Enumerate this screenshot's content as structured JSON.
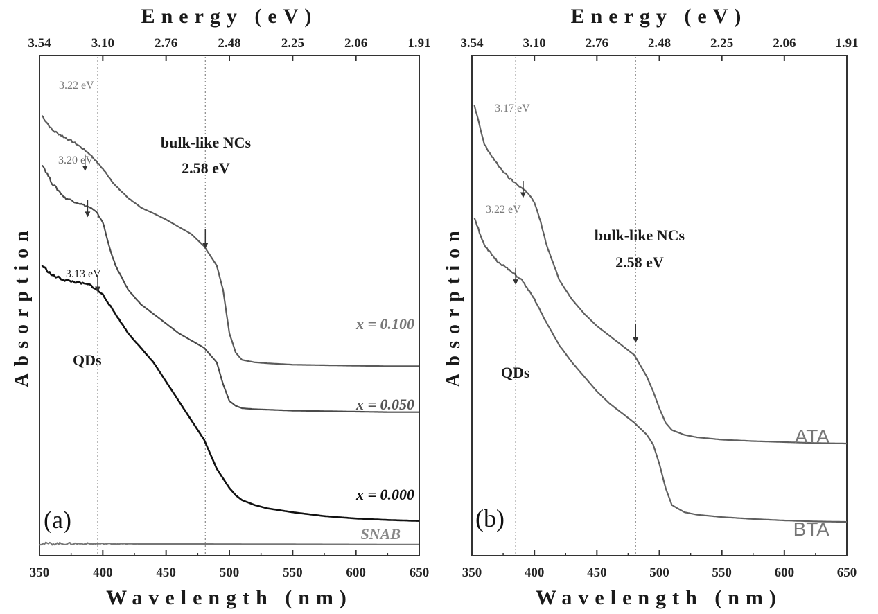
{
  "chart_data": [
    {
      "panel": "(a)",
      "type": "line",
      "xlabel": "Wavelength (nm)",
      "ylabel": "Absorption",
      "x2label": "Energy (eV)",
      "xlim": [
        350,
        650
      ],
      "xticks": [
        350,
        400,
        450,
        500,
        550,
        600,
        650
      ],
      "x2ticks": [
        "3.54",
        "3.10",
        "2.76",
        "2.48",
        "2.25",
        "2.06",
        "1.91"
      ],
      "grid": false,
      "series": [
        {
          "name": "x = 0.100",
          "color": "#5a5a5a",
          "x": [
            352,
            360,
            370,
            380,
            390,
            400,
            410,
            420,
            430,
            440,
            450,
            460,
            470,
            480,
            490,
            495,
            500,
            505,
            510,
            520,
            530,
            550,
            575,
            600,
            625,
            650
          ],
          "y": [
            0.89,
            0.86,
            0.845,
            0.83,
            0.81,
            0.78,
            0.745,
            0.72,
            0.7,
            0.688,
            0.675,
            0.66,
            0.645,
            0.62,
            0.58,
            0.53,
            0.44,
            0.4,
            0.385,
            0.38,
            0.378,
            0.375,
            0.374,
            0.373,
            0.372,
            0.372
          ]
        },
        {
          "name": "x = 0.050",
          "color": "#4a4a4a",
          "x": [
            352,
            360,
            370,
            380,
            390,
            395,
            400,
            405,
            410,
            420,
            430,
            440,
            450,
            460,
            470,
            480,
            490,
            495,
            500,
            505,
            510,
            520,
            530,
            550,
            575,
            600,
            625,
            650
          ],
          "y": [
            0.79,
            0.75,
            0.72,
            0.71,
            0.7,
            0.69,
            0.67,
            0.62,
            0.58,
            0.53,
            0.5,
            0.48,
            0.46,
            0.44,
            0.425,
            0.41,
            0.38,
            0.335,
            0.3,
            0.29,
            0.285,
            0.283,
            0.282,
            0.28,
            0.279,
            0.278,
            0.277,
            0.277
          ]
        },
        {
          "name": "x = 0.000",
          "color": "#111111",
          "x": [
            352,
            360,
            370,
            380,
            390,
            400,
            410,
            420,
            430,
            440,
            450,
            460,
            470,
            480,
            490,
            500,
            505,
            510,
            520,
            530,
            550,
            575,
            600,
            625,
            650
          ],
          "y": [
            0.58,
            0.56,
            0.55,
            0.545,
            0.54,
            0.52,
            0.48,
            0.44,
            0.41,
            0.38,
            0.34,
            0.3,
            0.26,
            0.22,
            0.16,
            0.12,
            0.105,
            0.095,
            0.085,
            0.078,
            0.07,
            0.062,
            0.057,
            0.054,
            0.052
          ]
        },
        {
          "name": "SNAB",
          "color": "#777777",
          "x": [
            350,
            650
          ],
          "y": [
            0.005,
            0.003
          ]
        }
      ],
      "annotations": [
        {
          "text": "3.22 eV",
          "x": 386,
          "y": 0.8
        },
        {
          "text": "3.20 eV",
          "x": 388,
          "y": 0.7
        },
        {
          "text": "3.13 eV",
          "x": 396,
          "y": 0.54
        },
        {
          "text": "bulk-like NCs",
          "text2": "2.58 eV",
          "x": 481,
          "y": 0.63
        },
        {
          "text": "QDs",
          "x": 392,
          "y": 0.31
        }
      ],
      "vlines": [
        396,
        481
      ]
    },
    {
      "panel": "(b)",
      "type": "line",
      "xlabel": "Wavelength (nm)",
      "ylabel": "Absorption",
      "x2label": "Energy (eV)",
      "xlim": [
        350,
        650
      ],
      "xticks": [
        350,
        400,
        450,
        500,
        550,
        600,
        650
      ],
      "x2ticks": [
        "3.54",
        "3.10",
        "2.76",
        "2.48",
        "2.25",
        "2.06",
        "1.91"
      ],
      "grid": false,
      "series": [
        {
          "name": "ATA",
          "color": "#5f5f5f",
          "x": [
            352,
            360,
            370,
            380,
            390,
            395,
            400,
            405,
            410,
            420,
            430,
            440,
            450,
            460,
            470,
            480,
            490,
            495,
            500,
            505,
            510,
            520,
            530,
            550,
            575,
            600,
            625,
            650
          ],
          "y": [
            0.91,
            0.83,
            0.79,
            0.76,
            0.74,
            0.73,
            0.71,
            0.67,
            0.62,
            0.55,
            0.51,
            0.48,
            0.455,
            0.435,
            0.415,
            0.395,
            0.35,
            0.32,
            0.285,
            0.255,
            0.24,
            0.23,
            0.225,
            0.22,
            0.217,
            0.215,
            0.213,
            0.212
          ]
        },
        {
          "name": "BTA",
          "color": "#5f5f5f",
          "x": [
            352,
            360,
            370,
            380,
            390,
            400,
            410,
            420,
            430,
            440,
            450,
            460,
            470,
            480,
            490,
            495,
            500,
            505,
            510,
            520,
            530,
            550,
            575,
            600,
            625,
            650
          ],
          "y": [
            0.68,
            0.62,
            0.59,
            0.57,
            0.55,
            0.51,
            0.46,
            0.415,
            0.38,
            0.35,
            0.32,
            0.295,
            0.275,
            0.255,
            0.23,
            0.21,
            0.17,
            0.12,
            0.085,
            0.07,
            0.065,
            0.06,
            0.056,
            0.053,
            0.051,
            0.05
          ]
        }
      ],
      "annotations": [
        {
          "text": "3.17 eV",
          "x": 391,
          "y": 0.74
        },
        {
          "text": "3.22 eV",
          "x": 385,
          "y": 0.56
        },
        {
          "text": "bulk-like NCs",
          "text2": "2.58 eV",
          "x": 481,
          "y": 0.44
        },
        {
          "text": "QDs",
          "x": 385,
          "y": 0.29
        }
      ],
      "vlines": [
        385,
        481
      ]
    }
  ]
}
